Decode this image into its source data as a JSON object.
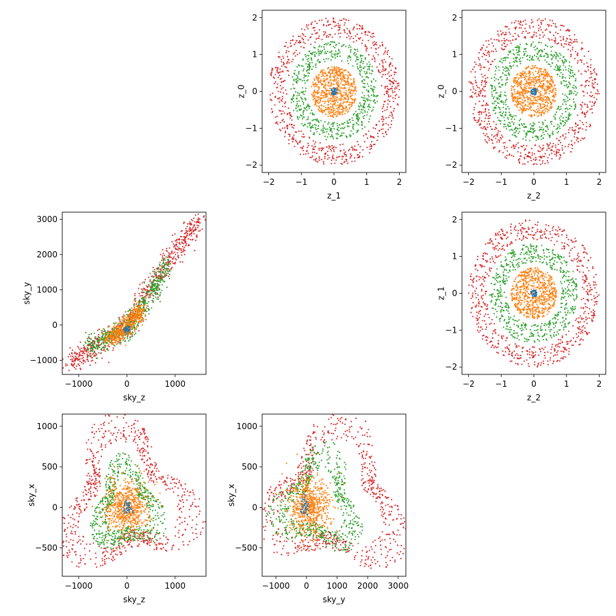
{
  "colors": {
    "series_1": "#1f77b4",
    "series_2": "#ff7f0e",
    "series_3": "#2ca02c",
    "series_4": "#d62728"
  },
  "chart_data": [
    {
      "type": "scatter",
      "id": "z1-z0",
      "xlabel": "z_1",
      "ylabel": "z_0",
      "xlim": [
        -2.2,
        2.2
      ],
      "ylim": [
        -2.2,
        2.2
      ],
      "xticks": [
        -2,
        -1,
        0,
        1,
        2
      ],
      "yticks": [
        -2,
        -1,
        0,
        1,
        2
      ],
      "xtick_labels": [
        "−2",
        "−1",
        "0",
        "1",
        "2"
      ],
      "ytick_labels": [
        "−2",
        "−1",
        "0",
        "1",
        "2"
      ],
      "grid": false,
      "series": [
        {
          "shape": "disk",
          "center": [
            0,
            0
          ],
          "radius": 0.1,
          "count": 40
        },
        {
          "shape": "disk",
          "center": [
            0,
            0
          ],
          "radius": 0.7,
          "count": 650
        },
        {
          "shape": "annulus",
          "center": [
            0,
            0
          ],
          "r_inner": 0.85,
          "r_outer": 1.35,
          "count": 600
        },
        {
          "shape": "annulus",
          "center": [
            0,
            0
          ],
          "r_inner": 1.45,
          "r_outer": 2.0,
          "count": 700
        }
      ]
    },
    {
      "type": "scatter",
      "id": "z2-z0",
      "xlabel": "z_2",
      "ylabel": "z_0",
      "xlim": [
        -2.2,
        2.2
      ],
      "ylim": [
        -2.2,
        2.2
      ],
      "xticks": [
        -2,
        -1,
        0,
        1,
        2
      ],
      "yticks": [
        -2,
        -1,
        0,
        1,
        2
      ],
      "xtick_labels": [
        "−2",
        "−1",
        "0",
        "1",
        "2"
      ],
      "ytick_labels": [
        "−2",
        "−1",
        "0",
        "1",
        "2"
      ],
      "grid": false,
      "series": [
        {
          "shape": "disk",
          "center": [
            0,
            0
          ],
          "radius": 0.1,
          "count": 40
        },
        {
          "shape": "disk",
          "center": [
            0,
            0
          ],
          "radius": 0.7,
          "count": 650
        },
        {
          "shape": "annulus",
          "center": [
            0,
            0
          ],
          "r_inner": 0.85,
          "r_outer": 1.35,
          "count": 600
        },
        {
          "shape": "annulus",
          "center": [
            0,
            0
          ],
          "r_inner": 1.45,
          "r_outer": 2.0,
          "count": 700
        }
      ]
    },
    {
      "type": "scatter",
      "id": "skyz-skyy",
      "xlabel": "sky_z",
      "ylabel": "sky_y",
      "xlim": [
        -1340,
        1640
      ],
      "ylim": [
        -1400,
        3200
      ],
      "xticks": [
        -1000,
        0,
        1000
      ],
      "yticks": [
        -1000,
        0,
        1000,
        2000,
        3000
      ],
      "xtick_labels": [
        "−1000",
        "0",
        "1000"
      ],
      "ytick_labels": [
        "−1000",
        "0",
        "1000",
        "2000",
        "3000"
      ],
      "grid": false,
      "series": [
        {
          "shape": "band",
          "points": [
            [
              -50,
              -120
            ],
            [
              0,
              -150
            ],
            [
              50,
              -50
            ]
          ],
          "spread": 40,
          "count": 40
        },
        {
          "shape": "band",
          "points": [
            [
              -400,
              -400
            ],
            [
              -200,
              -250
            ],
            [
              0,
              -100
            ],
            [
              150,
              200
            ],
            [
              300,
              450
            ]
          ],
          "spread": 110,
          "count": 500
        },
        {
          "shape": "band",
          "points": [
            [
              -800,
              -650
            ],
            [
              -400,
              -350
            ],
            [
              0,
              -100
            ],
            [
              300,
              450
            ],
            [
              600,
              1100
            ],
            [
              850,
              1800
            ]
          ],
          "spread": 120,
          "count": 600
        },
        {
          "shape": "band",
          "points": [
            [
              -1200,
              -1100
            ],
            [
              -800,
              -700
            ],
            [
              -400,
              -420
            ],
            [
              0,
              -80
            ],
            [
              400,
              900
            ],
            [
              800,
              1700
            ],
            [
              1200,
              2400
            ],
            [
              1500,
              2950
            ]
          ],
          "spread": 140,
          "count": 750
        }
      ]
    },
    {
      "type": "scatter",
      "id": "z2-z1",
      "xlabel": "z_2",
      "ylabel": "z_1",
      "xlim": [
        -2.2,
        2.2
      ],
      "ylim": [
        -2.2,
        2.2
      ],
      "xticks": [
        -2,
        -1,
        0,
        1,
        2
      ],
      "yticks": [
        -2,
        -1,
        0,
        1,
        2
      ],
      "xtick_labels": [
        "−2",
        "−1",
        "0",
        "1",
        "2"
      ],
      "ytick_labels": [
        "−2",
        "−1",
        "0",
        "1",
        "2"
      ],
      "grid": false,
      "series": [
        {
          "shape": "disk",
          "center": [
            0,
            0
          ],
          "radius": 0.1,
          "count": 40
        },
        {
          "shape": "disk",
          "center": [
            0,
            0
          ],
          "radius": 0.7,
          "count": 650
        },
        {
          "shape": "annulus",
          "center": [
            0,
            0
          ],
          "r_inner": 0.85,
          "r_outer": 1.35,
          "count": 600
        },
        {
          "shape": "annulus",
          "center": [
            0,
            0
          ],
          "r_inner": 1.45,
          "r_outer": 2.0,
          "count": 700
        }
      ]
    },
    {
      "type": "scatter",
      "id": "skyz-skyx",
      "xlabel": "sky_z",
      "ylabel": "sky_x",
      "xlim": [
        -1340,
        1640
      ],
      "ylim": [
        -850,
        1150
      ],
      "xticks": [
        -1000,
        0,
        1000
      ],
      "yticks": [
        -500,
        0,
        500,
        1000
      ],
      "xtick_labels": [
        "−1000",
        "0",
        "1000"
      ],
      "ytick_labels": [
        "−500",
        "0",
        "500",
        "1000"
      ],
      "grid": false,
      "series": [
        {
          "shape": "blob",
          "center": [
            0,
            0
          ],
          "sx": 60,
          "sy": 50,
          "count": 40
        },
        {
          "shape": "blob",
          "center": [
            0,
            0
          ],
          "sx": 220,
          "sy": 160,
          "count": 650
        },
        {
          "shape": "lobes",
          "center": [
            0,
            0
          ],
          "rx": 700,
          "ry": 550,
          "lobes": 3,
          "amp": 0.25,
          "phase": 1.2,
          "thickness": 0.45,
          "count": 600
        },
        {
          "shape": "lobes",
          "center": [
            0,
            100
          ],
          "rx": 1300,
          "ry": 850,
          "lobes": 3,
          "amp": 0.3,
          "phase": 1.0,
          "thickness": 0.35,
          "count": 700
        }
      ]
    },
    {
      "type": "scatter",
      "id": "skyy-skyx",
      "xlabel": "sky_y",
      "ylabel": "sky_x",
      "xlim": [
        -1450,
        3250
      ],
      "ylim": [
        -850,
        1150
      ],
      "xticks": [
        -1000,
        0,
        1000,
        2000,
        3000
      ],
      "yticks": [
        -500,
        0,
        500,
        1000
      ],
      "xtick_labels": [
        "−1000",
        "0",
        "1000",
        "2000",
        "3000"
      ],
      "ytick_labels": [
        "−500",
        "0",
        "500",
        "1000"
      ],
      "grid": false,
      "series": [
        {
          "shape": "blob",
          "center": [
            -50,
            0
          ],
          "sx": 80,
          "sy": 60,
          "count": 40
        },
        {
          "shape": "blob",
          "center": [
            100,
            0
          ],
          "sx": 350,
          "sy": 170,
          "count": 650
        },
        {
          "shape": "lobes",
          "center": [
            400,
            50
          ],
          "rx": 1350,
          "ry": 600,
          "lobes": 3,
          "amp": 0.3,
          "phase": 2.2,
          "thickness": 0.45,
          "count": 600
        },
        {
          "shape": "lobes",
          "center": [
            900,
            100
          ],
          "rx": 2200,
          "ry": 880,
          "lobes": 3,
          "amp": 0.3,
          "phase": 2.0,
          "thickness": 0.35,
          "count": 700
        }
      ]
    }
  ]
}
